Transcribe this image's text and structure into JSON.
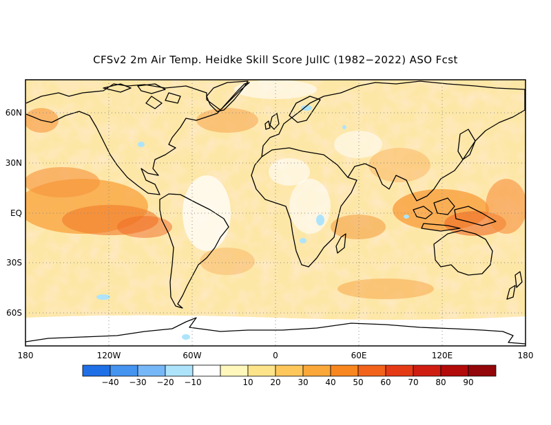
{
  "title": "CFSv2 2m Air Temp. Heidke Skill Score JulIC (1982−2022) ASO Fcst",
  "lat_labels": [
    "60N",
    "30N",
    "EQ",
    "30S",
    "60S"
  ],
  "lon_labels": [
    "180",
    "120W",
    "60W",
    "0",
    "60E",
    "120E",
    "180"
  ],
  "colorbar": {
    "colors": [
      "#1f6fe6",
      "#4594f0",
      "#76b8f7",
      "#aee4fb",
      "#ffffff",
      "#fff7bc",
      "#fde48a",
      "#fdc75c",
      "#fba83a",
      "#f8871f",
      "#f2621a",
      "#e43a16",
      "#cf1d12",
      "#b30a0a",
      "#93070a"
    ],
    "labels": [
      "−40",
      "−30",
      "−20",
      "−10",
      "10",
      "20",
      "30",
      "40",
      "50",
      "60",
      "70",
      "80",
      "90"
    ]
  }
}
